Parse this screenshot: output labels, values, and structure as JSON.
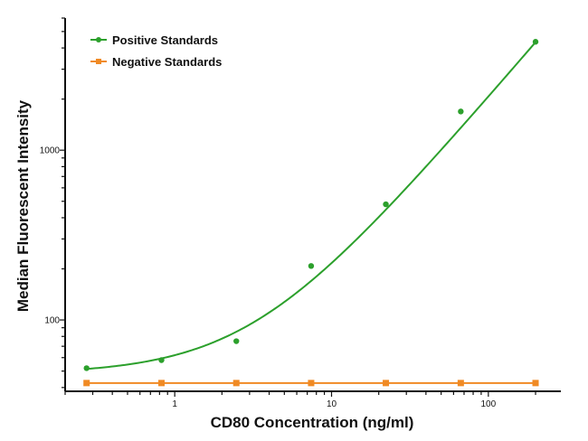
{
  "chart_data": {
    "type": "scatter",
    "title": "",
    "xlabel": "CD80 Concentration (ng/ml)",
    "ylabel": "Median Fluorescent Intensity",
    "xscale": "log",
    "yscale": "log",
    "xlim": [
      0.2,
      290
    ],
    "ylim": [
      38,
      6000
    ],
    "x_ticks": [
      1,
      10,
      100
    ],
    "x_tick_labels": [
      "1",
      "10",
      "100"
    ],
    "y_ticks": [
      100,
      1000
    ],
    "y_tick_labels": [
      "100",
      "1000"
    ],
    "grid": false,
    "legend_position": "top-left",
    "series": [
      {
        "name": "Positive Standards",
        "color": "#2ca02c",
        "marker": "circle",
        "x": [
          0.274,
          0.823,
          2.47,
          7.41,
          22.2,
          66.7,
          200
        ],
        "y": [
          52,
          58,
          75,
          208,
          480,
          1690,
          4350
        ],
        "fit": {
          "bottom": 48,
          "scale": 14,
          "exponent": 1.08
        }
      },
      {
        "name": "Negative Standards",
        "color": "#f08a24",
        "marker": "square",
        "x": [
          0.274,
          0.823,
          2.47,
          7.41,
          22.2,
          66.7,
          200
        ],
        "y": [
          42.5,
          42.5,
          42.5,
          42.5,
          42.5,
          42.5,
          42.5
        ]
      }
    ]
  }
}
